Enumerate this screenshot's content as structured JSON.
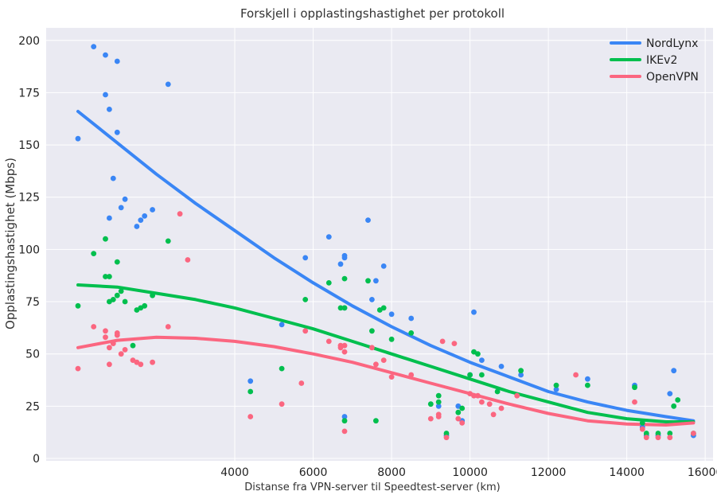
{
  "chart_data": {
    "type": "scatter",
    "title": "Forskjell i opplastingshastighet per protokoll",
    "xlabel": "Distanse fra VPN-server til Speedtest-server (km)",
    "ylabel": "Opplastingshastighet (Mbps)",
    "xlim": [
      0,
      16200
    ],
    "ylim": [
      0,
      206
    ],
    "xticks": [
      4000,
      6000,
      8000,
      10000,
      12000,
      14000,
      16000
    ],
    "yticks": [
      0,
      25,
      50,
      75,
      100,
      125,
      150,
      175,
      200
    ],
    "grid": true,
    "legend_position": "top-right",
    "series": [
      {
        "name": "NordLynx",
        "color": "#3a86f5",
        "points": [
          [
            0,
            153
          ],
          [
            400,
            197
          ],
          [
            700,
            193
          ],
          [
            700,
            174
          ],
          [
            800,
            167
          ],
          [
            1000,
            156
          ],
          [
            1000,
            190
          ],
          [
            900,
            134
          ],
          [
            1100,
            120
          ],
          [
            1200,
            124
          ],
          [
            800,
            115
          ],
          [
            1500,
            111
          ],
          [
            1600,
            114
          ],
          [
            1700,
            116
          ],
          [
            1900,
            119
          ],
          [
            2300,
            179
          ],
          [
            4400,
            37
          ],
          [
            5200,
            64
          ],
          [
            5800,
            96
          ],
          [
            6400,
            106
          ],
          [
            6700,
            93
          ],
          [
            6800,
            97
          ],
          [
            6800,
            96
          ],
          [
            6800,
            72
          ],
          [
            6800,
            20
          ],
          [
            7400,
            114
          ],
          [
            7500,
            76
          ],
          [
            7600,
            85
          ],
          [
            7800,
            92
          ],
          [
            8000,
            69
          ],
          [
            8500,
            67
          ],
          [
            9200,
            25
          ],
          [
            9400,
            11
          ],
          [
            9700,
            25
          ],
          [
            9800,
            18
          ],
          [
            10000,
            40
          ],
          [
            10100,
            70
          ],
          [
            10300,
            47
          ],
          [
            10800,
            44
          ],
          [
            11300,
            40
          ],
          [
            12200,
            33
          ],
          [
            13000,
            38
          ],
          [
            14200,
            35
          ],
          [
            14400,
            15
          ],
          [
            14500,
            11
          ],
          [
            14800,
            11
          ],
          [
            15100,
            31
          ],
          [
            15200,
            42
          ],
          [
            15700,
            11
          ]
        ]
      },
      {
        "name": "IKEv2",
        "color": "#00bf4e",
        "points": [
          [
            0,
            73
          ],
          [
            400,
            98
          ],
          [
            700,
            105
          ],
          [
            700,
            87
          ],
          [
            800,
            87
          ],
          [
            800,
            75
          ],
          [
            900,
            76
          ],
          [
            1000,
            78
          ],
          [
            1000,
            94
          ],
          [
            1100,
            80
          ],
          [
            1200,
            75
          ],
          [
            1400,
            54
          ],
          [
            1500,
            71
          ],
          [
            1600,
            72
          ],
          [
            1700,
            73
          ],
          [
            1900,
            78
          ],
          [
            2300,
            104
          ],
          [
            4400,
            32
          ],
          [
            5200,
            43
          ],
          [
            5800,
            76
          ],
          [
            6400,
            84
          ],
          [
            6700,
            72
          ],
          [
            6800,
            86
          ],
          [
            6800,
            72
          ],
          [
            6800,
            18
          ],
          [
            7400,
            85
          ],
          [
            7500,
            61
          ],
          [
            7600,
            18
          ],
          [
            7700,
            71
          ],
          [
            7800,
            72
          ],
          [
            8000,
            57
          ],
          [
            8500,
            60
          ],
          [
            9000,
            26
          ],
          [
            9200,
            27
          ],
          [
            9200,
            30
          ],
          [
            9400,
            12
          ],
          [
            9700,
            22
          ],
          [
            9800,
            24
          ],
          [
            10000,
            40
          ],
          [
            10100,
            51
          ],
          [
            10200,
            50
          ],
          [
            10300,
            40
          ],
          [
            10700,
            32
          ],
          [
            11300,
            42
          ],
          [
            12200,
            35
          ],
          [
            13000,
            35
          ],
          [
            14200,
            34
          ],
          [
            14400,
            17
          ],
          [
            14500,
            12
          ],
          [
            14800,
            12
          ],
          [
            15100,
            12
          ],
          [
            15200,
            25
          ],
          [
            15300,
            28
          ],
          [
            15700,
            12
          ]
        ]
      },
      {
        "name": "OpenVPN",
        "color": "#fb6680",
        "points": [
          [
            0,
            43
          ],
          [
            400,
            63
          ],
          [
            700,
            61
          ],
          [
            700,
            58
          ],
          [
            800,
            45
          ],
          [
            800,
            53
          ],
          [
            900,
            55
          ],
          [
            1000,
            59
          ],
          [
            1000,
            60
          ],
          [
            1100,
            50
          ],
          [
            1200,
            52
          ],
          [
            1400,
            47
          ],
          [
            1500,
            46
          ],
          [
            1600,
            45
          ],
          [
            1900,
            46
          ],
          [
            2300,
            63
          ],
          [
            2600,
            117
          ],
          [
            2800,
            95
          ],
          [
            4400,
            20
          ],
          [
            5200,
            26
          ],
          [
            5700,
            36
          ],
          [
            5800,
            61
          ],
          [
            6400,
            56
          ],
          [
            6700,
            54
          ],
          [
            6700,
            53
          ],
          [
            6800,
            54
          ],
          [
            6800,
            51
          ],
          [
            6800,
            13
          ],
          [
            7500,
            53
          ],
          [
            7600,
            45
          ],
          [
            7800,
            47
          ],
          [
            8000,
            39
          ],
          [
            8500,
            40
          ],
          [
            9000,
            19
          ],
          [
            9200,
            20
          ],
          [
            9200,
            21
          ],
          [
            9300,
            56
          ],
          [
            9400,
            10
          ],
          [
            9600,
            55
          ],
          [
            9700,
            19
          ],
          [
            9800,
            17
          ],
          [
            10000,
            31
          ],
          [
            10100,
            30
          ],
          [
            10200,
            30
          ],
          [
            10300,
            27
          ],
          [
            10500,
            26
          ],
          [
            10600,
            21
          ],
          [
            10800,
            24
          ],
          [
            11200,
            30
          ],
          [
            12700,
            40
          ],
          [
            14200,
            27
          ],
          [
            14400,
            14
          ],
          [
            14500,
            10
          ],
          [
            14800,
            10
          ],
          [
            15100,
            10
          ],
          [
            15700,
            12
          ]
        ]
      }
    ],
    "trend_lines": [
      {
        "name": "NordLynx",
        "color": "#3a86f5",
        "points": [
          [
            0,
            166
          ],
          [
            1000,
            151
          ],
          [
            2000,
            136
          ],
          [
            3000,
            122
          ],
          [
            4000,
            109
          ],
          [
            5000,
            96
          ],
          [
            6000,
            84
          ],
          [
            7000,
            73
          ],
          [
            8000,
            63
          ],
          [
            9000,
            54
          ],
          [
            10000,
            46
          ],
          [
            11000,
            39
          ],
          [
            12000,
            32
          ],
          [
            13000,
            27
          ],
          [
            14000,
            23
          ],
          [
            15000,
            20
          ],
          [
            15700,
            18
          ]
        ]
      },
      {
        "name": "IKEv2",
        "color": "#00bf4e",
        "points": [
          [
            0,
            83
          ],
          [
            1000,
            82
          ],
          [
            2000,
            79
          ],
          [
            3000,
            76
          ],
          [
            4000,
            72
          ],
          [
            5000,
            67
          ],
          [
            6000,
            62
          ],
          [
            7000,
            56
          ],
          [
            8000,
            50
          ],
          [
            9000,
            44
          ],
          [
            10000,
            38
          ],
          [
            11000,
            32
          ],
          [
            12000,
            27
          ],
          [
            13000,
            22
          ],
          [
            14000,
            19
          ],
          [
            15000,
            17.5
          ],
          [
            15700,
            17.5
          ]
        ]
      },
      {
        "name": "OpenVPN",
        "color": "#fb6680",
        "points": [
          [
            0,
            53
          ],
          [
            1000,
            56.5
          ],
          [
            2000,
            58
          ],
          [
            3000,
            57.5
          ],
          [
            4000,
            56
          ],
          [
            5000,
            53.5
          ],
          [
            6000,
            50
          ],
          [
            7000,
            46
          ],
          [
            8000,
            41
          ],
          [
            9000,
            36
          ],
          [
            10000,
            31
          ],
          [
            11000,
            26
          ],
          [
            12000,
            21.5
          ],
          [
            13000,
            18
          ],
          [
            14000,
            16.5
          ],
          [
            15000,
            16
          ],
          [
            15700,
            17
          ]
        ]
      }
    ]
  }
}
